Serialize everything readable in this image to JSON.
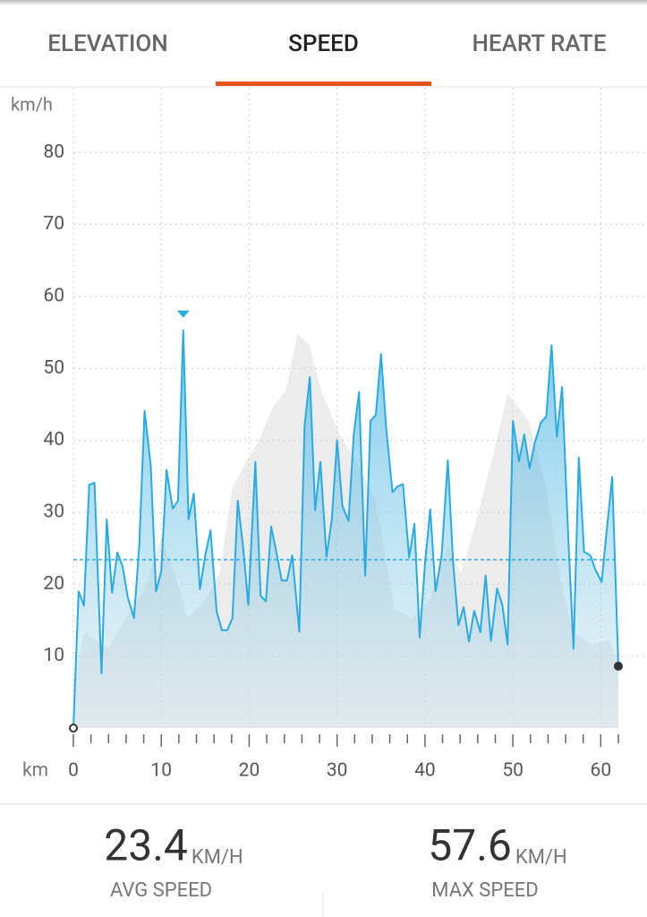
{
  "tabs": {
    "items": [
      "ELEVATION",
      "SPEED",
      "HEART RATE"
    ],
    "active": 1
  },
  "chart_data": {
    "type": "line",
    "y_axis_label": "km/h",
    "x_axis_label": "km",
    "xlim": [
      0,
      62
    ],
    "ylim": [
      0,
      89
    ],
    "xticks": [
      0,
      10,
      20,
      30,
      40,
      50,
      60
    ],
    "x_minor_ticks": [
      2,
      4,
      6,
      8,
      12,
      14,
      16,
      18,
      22,
      24,
      26,
      28,
      32,
      34,
      36,
      38,
      42,
      44,
      46,
      48,
      52,
      54,
      56,
      58,
      62
    ],
    "yticks": [
      10,
      20,
      30,
      40,
      50,
      60,
      70,
      80
    ],
    "grid": true,
    "x": [
      0,
      0.6,
      1.2,
      1.8,
      2.4,
      3.2,
      3.8,
      4.4,
      5.0,
      5.6,
      6.2,
      6.9,
      7.5,
      8.1,
      8.8,
      9.4,
      10.0,
      10.6,
      11.3,
      11.9,
      12.5,
      13.1,
      13.7,
      14.4,
      15.0,
      15.6,
      16.3,
      16.9,
      17.5,
      18.1,
      18.7,
      19.3,
      19.9,
      20.7,
      21.3,
      21.9,
      22.5,
      23.1,
      23.7,
      24.3,
      24.9,
      25.7,
      26.3,
      26.9,
      27.5,
      28.1,
      28.8,
      29.4,
      30.0,
      30.6,
      31.3,
      31.9,
      32.5,
      33.2,
      33.8,
      34.4,
      35.0,
      35.6,
      36.3,
      36.9,
      37.5,
      38.2,
      38.8,
      39.4,
      40.0,
      40.6,
      41.2,
      41.9,
      42.6,
      43.2,
      43.8,
      44.4,
      45.0,
      45.6,
      46.3,
      46.9,
      47.5,
      48.2,
      48.8,
      49.4,
      50.0,
      50.7,
      51.3,
      51.9,
      52.5,
      53.2,
      53.8,
      54.4,
      55.0,
      55.6,
      56.3,
      56.9,
      57.5,
      58.1,
      58.8,
      59.4,
      60.1,
      60.7,
      61.3,
      62.0
    ],
    "series": [
      {
        "color": "#29abe2",
        "values": [
          0,
          19,
          17,
          33.8,
          34.1,
          7.6,
          29,
          18.8,
          24.4,
          22.5,
          18.1,
          15.3,
          25.5,
          44.1,
          36.5,
          19,
          21.8,
          35.9,
          30.5,
          31.6,
          55.3,
          29,
          32.6,
          19.3,
          24,
          27.5,
          16.2,
          13.6,
          13.6,
          15.3,
          31.6,
          25.3,
          17.1,
          37,
          18.4,
          17.6,
          28,
          24.4,
          20.5,
          20.5,
          24,
          13.4,
          42,
          48.8,
          30.3,
          37,
          23.8,
          29,
          40,
          30.9,
          28.8,
          40.8,
          46.7,
          21.2,
          42.7,
          43.5,
          52,
          41.5,
          32.8,
          33.6,
          33.9,
          23.7,
          28.4,
          12.6,
          22.8,
          30.4,
          19,
          24,
          37.2,
          23,
          14.3,
          16.8,
          12,
          16.3,
          13.3,
          21.2,
          12.1,
          19.4,
          17.1,
          11.6,
          42.7,
          37.1,
          40.8,
          36.1,
          39.7,
          42.5,
          43.3,
          53.2,
          40.5,
          47.4,
          26.5,
          11,
          37.6,
          24.5,
          24,
          22,
          20.3,
          27.8,
          34.9,
          8.6
        ]
      }
    ],
    "background": {
      "color": "#ececec",
      "x": [
        0,
        1.3,
        3.9,
        6,
        8,
        10,
        11.5,
        13,
        15,
        16.6,
        18.1,
        19.7,
        21.2,
        22.7,
        24.2,
        25.5,
        26.8,
        28.3,
        30.3,
        32.4,
        34.4,
        36.5,
        38.5,
        40.5,
        42.6,
        44.1,
        45.6,
        47.7,
        49.4,
        51.8,
        53.8,
        55.3,
        56.8,
        58.9,
        60.9,
        62
      ],
      "values": [
        6.6,
        13.4,
        11,
        15.3,
        19,
        26.5,
        21.5,
        15.3,
        17.8,
        21.5,
        33.4,
        37.1,
        40.2,
        44.6,
        47,
        54.8,
        53.3,
        46.5,
        40.8,
        36.5,
        31.5,
        16.6,
        15.3,
        17.8,
        25.3,
        21.5,
        27.8,
        37.7,
        46.5,
        42.7,
        33.4,
        21.5,
        13.4,
        11.6,
        12.2,
        9.1
      ]
    }
  },
  "stats": [
    {
      "value": 23.4,
      "unit": "KM/H",
      "label": "AVG SPEED"
    },
    {
      "value": 57.6,
      "unit": "KM/H",
      "label": "MAX SPEED"
    }
  ]
}
